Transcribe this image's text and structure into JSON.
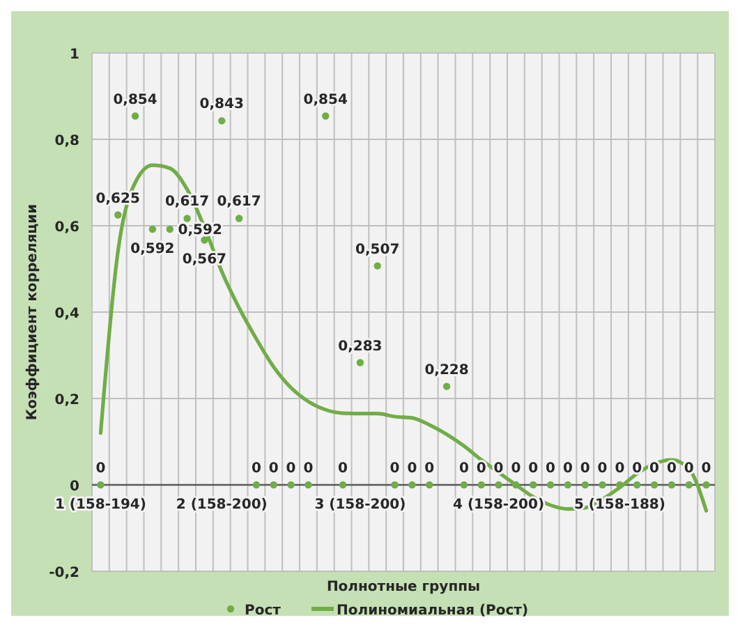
{
  "chart_data": {
    "type": "scatter",
    "xlabel": "Полнотные группы",
    "ylabel": "Коэффициент корреляции",
    "categories": [
      "1 (158-194)",
      null,
      null,
      null,
      null,
      null,
      null,
      "2 (158-200)",
      null,
      null,
      null,
      null,
      null,
      null,
      null,
      "3 (158-200)",
      null,
      null,
      null,
      null,
      null,
      null,
      null,
      "4 (158-200)",
      null,
      null,
      null,
      null,
      null,
      null,
      "5 (158-188)",
      null,
      null,
      null,
      null,
      null
    ],
    "series": [
      {
        "name": "Рост",
        "color": "#70ad47",
        "marker": "circle",
        "values": [
          0,
          0.625,
          0.854,
          0.592,
          0.592,
          0.617,
          0.567,
          0.843,
          0.617,
          0,
          0,
          0,
          0,
          0.854,
          0,
          0.283,
          0.507,
          0,
          0,
          0,
          0.228,
          0,
          0,
          0,
          0,
          0,
          0,
          0,
          0,
          0,
          0,
          0,
          0,
          0,
          0,
          0
        ],
        "value_labels": [
          "0",
          "0,625",
          "0,854",
          "0,592",
          "0,592",
          "0,617",
          "0,567",
          "0,843",
          "0,617",
          "0",
          "0",
          "0",
          "0",
          "0,854",
          "0",
          "0,283",
          "0,507",
          "0",
          "0",
          "0",
          "0,228",
          "0",
          "0",
          "0",
          "0",
          "0",
          "0",
          "0",
          "0",
          "0",
          "0",
          "0",
          "0",
          "0",
          "0",
          "0"
        ]
      },
      {
        "name": "Полиномиальная  (Рост)",
        "type": "line",
        "color": "#70ad47",
        "marker": "none",
        "line_style": "solid",
        "values": [
          0.12,
          0.54,
          0.7,
          0.74,
          0.733,
          0.684,
          0.596,
          0.494,
          0.41,
          0.338,
          0.273,
          0.225,
          0.193,
          0.174,
          0.166,
          0.165,
          0.165,
          0.158,
          0.155,
          0.139,
          0.117,
          0.09,
          0.058,
          0.029,
          0,
          -0.028,
          -0.047,
          -0.056,
          -0.053,
          -0.033,
          -0.006,
          0.026,
          0.049,
          0.058,
          0.037,
          -0.06
        ]
      }
    ],
    "ylim": [
      -0.2,
      1
    ],
    "yticks": [
      {
        "value": -0.2,
        "label": "-0,2"
      },
      0,
      {
        "value": 0.2,
        "label": "0,2"
      },
      {
        "value": 0.4,
        "label": "0,4"
      },
      {
        "value": 0.6,
        "label": "0,6"
      },
      {
        "value": 0.8,
        "label": "0,8"
      },
      1
    ],
    "grid": true,
    "legend": "bottom"
  }
}
